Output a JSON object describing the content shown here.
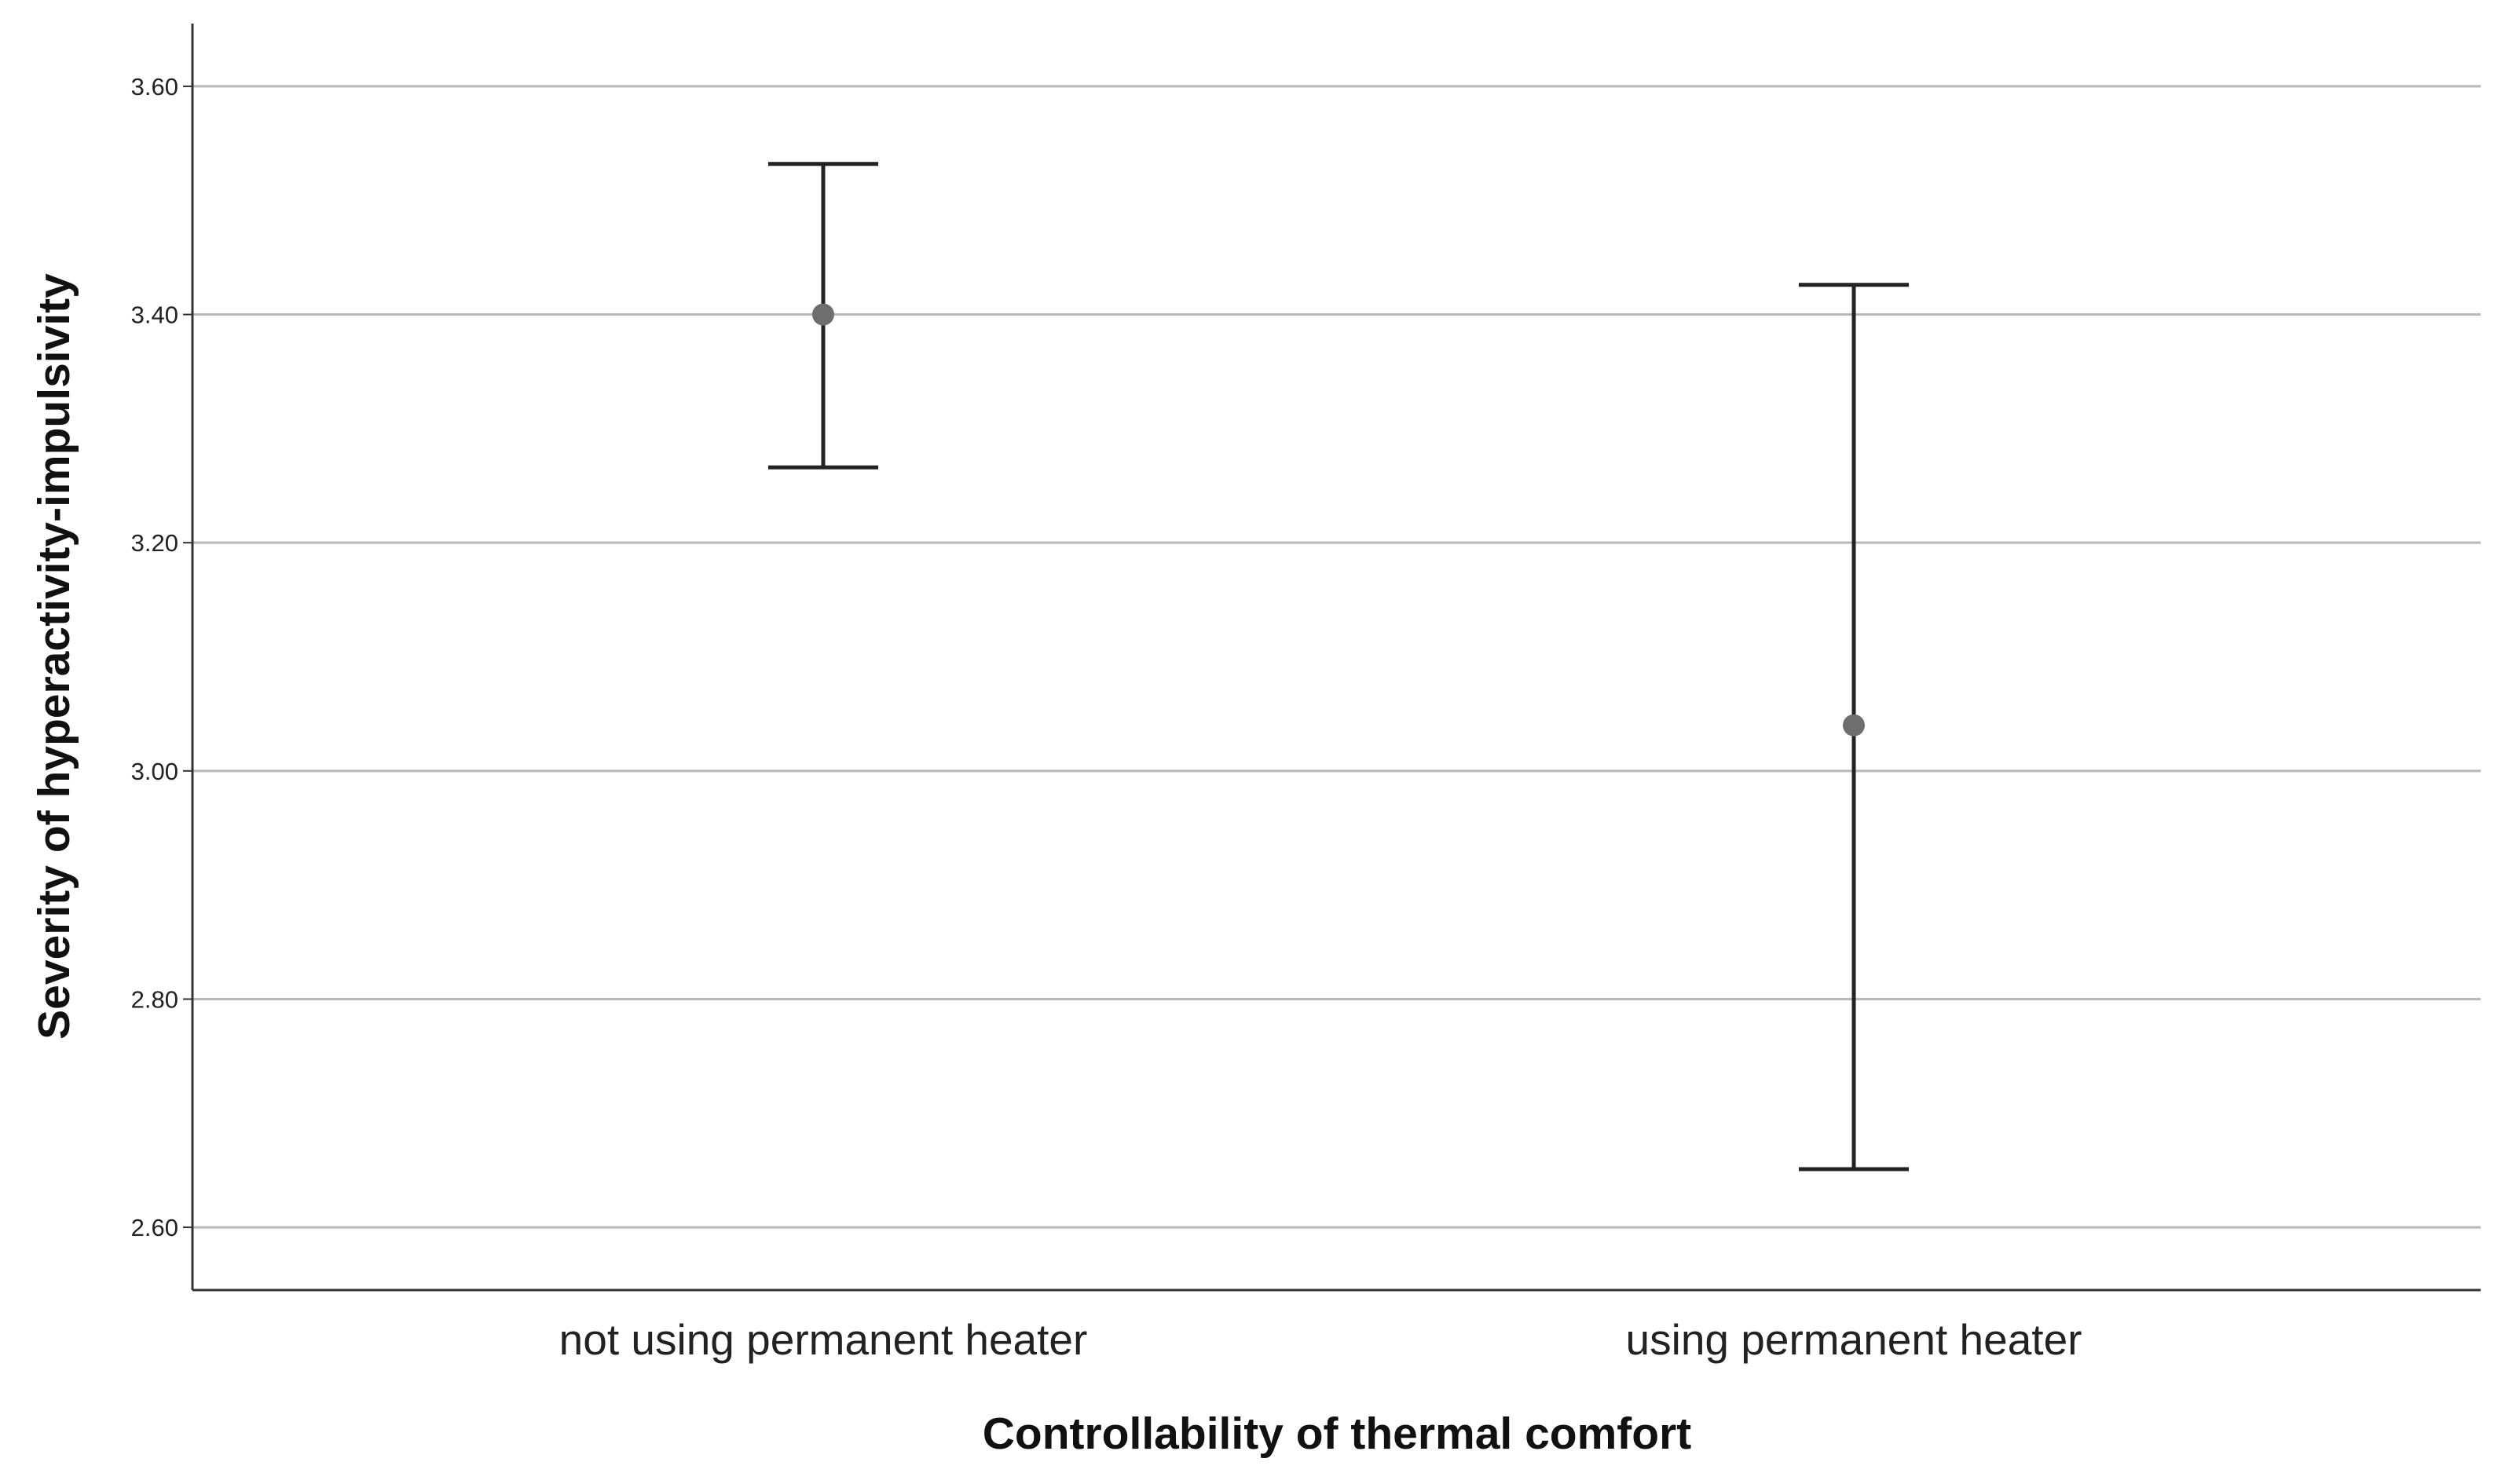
{
  "chart_data": {
    "type": "scatter",
    "subtype": "error-bar",
    "title": "",
    "xlabel": "Controllability of thermal comfort",
    "ylabel": "Severity of hyperactivity-impulsivity",
    "categories": [
      "not using permanent heater",
      "using permanent heater"
    ],
    "points": [
      {
        "category": "not using permanent heater",
        "mean": 3.4,
        "lower": 3.266,
        "upper": 3.532
      },
      {
        "category": "using permanent heater",
        "mean": 3.04,
        "lower": 2.651,
        "upper": 3.426
      }
    ],
    "ylim": [
      2.545,
      3.655
    ],
    "yticks": [
      "2.60",
      "2.80",
      "3.00",
      "3.20",
      "3.40",
      "3.60"
    ],
    "grid": true,
    "legend": "none",
    "colors": {
      "grid": "#b8b8b8",
      "axis": "#333333",
      "errorbar": "#222222",
      "marker": "#6e6e6e"
    }
  }
}
